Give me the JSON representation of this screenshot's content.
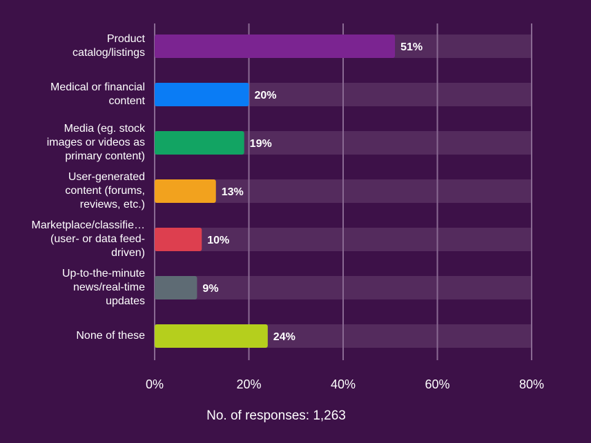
{
  "chart_data": {
    "type": "bar",
    "orientation": "horizontal",
    "categories": [
      "Product\ncatalog/listings",
      "Medical or financial\ncontent",
      "Media (eg. stock\nimages or videos as\nprimary content)",
      "User-generated\ncontent (forums,\nreviews, etc.)",
      "Marketplace/classifie…\n(user- or data feed-\ndriven)",
      "Up-to-the-minute\nnews/real-time\nupdates",
      "None of these"
    ],
    "values": [
      51,
      20,
      19,
      13,
      10,
      9,
      24
    ],
    "value_labels": [
      "51%",
      "20%",
      "19%",
      "13%",
      "10%",
      "9%",
      "24%"
    ],
    "bar_colors": [
      "#7b2491",
      "#0a7cf5",
      "#12a463",
      "#f2a21e",
      "#dd3f4f",
      "#5e6b74",
      "#b5cf1d"
    ],
    "track_color": "#542b5d",
    "xlim": [
      0,
      80
    ],
    "x_ticks": [
      "0%",
      "20%",
      "40%",
      "60%",
      "80%"
    ],
    "grid": true,
    "footer": "No. of responses: 1,263"
  }
}
